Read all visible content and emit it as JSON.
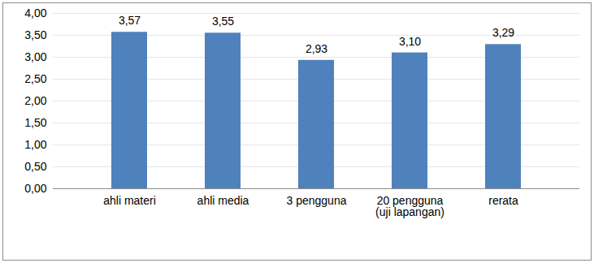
{
  "chart_data": {
    "type": "bar",
    "categories": [
      "ahli materi",
      "ahli media",
      "3 pengguna",
      "20 pengguna\n(uji lapangan)",
      "rerata"
    ],
    "values": [
      3.57,
      3.55,
      2.93,
      3.1,
      3.29
    ],
    "value_labels": [
      "3,57",
      "3,55",
      "2,93",
      "3,10",
      "3,29"
    ],
    "data_labels": true,
    "color": "#4f81bd",
    "ylim": [
      0,
      4
    ],
    "yticks": [
      {
        "value": 0,
        "label": "0,00"
      },
      {
        "value": 0.5,
        "label": "0,50"
      },
      {
        "value": 1,
        "label": "1,00"
      },
      {
        "value": 1.5,
        "label": "1,50"
      },
      {
        "value": 2,
        "label": "2,00"
      },
      {
        "value": 2.5,
        "label": "2,50"
      },
      {
        "value": 3,
        "label": "3,00"
      },
      {
        "value": 3.5,
        "label": "3,50"
      },
      {
        "value": 4,
        "label": "4,00"
      }
    ],
    "grid": true
  }
}
